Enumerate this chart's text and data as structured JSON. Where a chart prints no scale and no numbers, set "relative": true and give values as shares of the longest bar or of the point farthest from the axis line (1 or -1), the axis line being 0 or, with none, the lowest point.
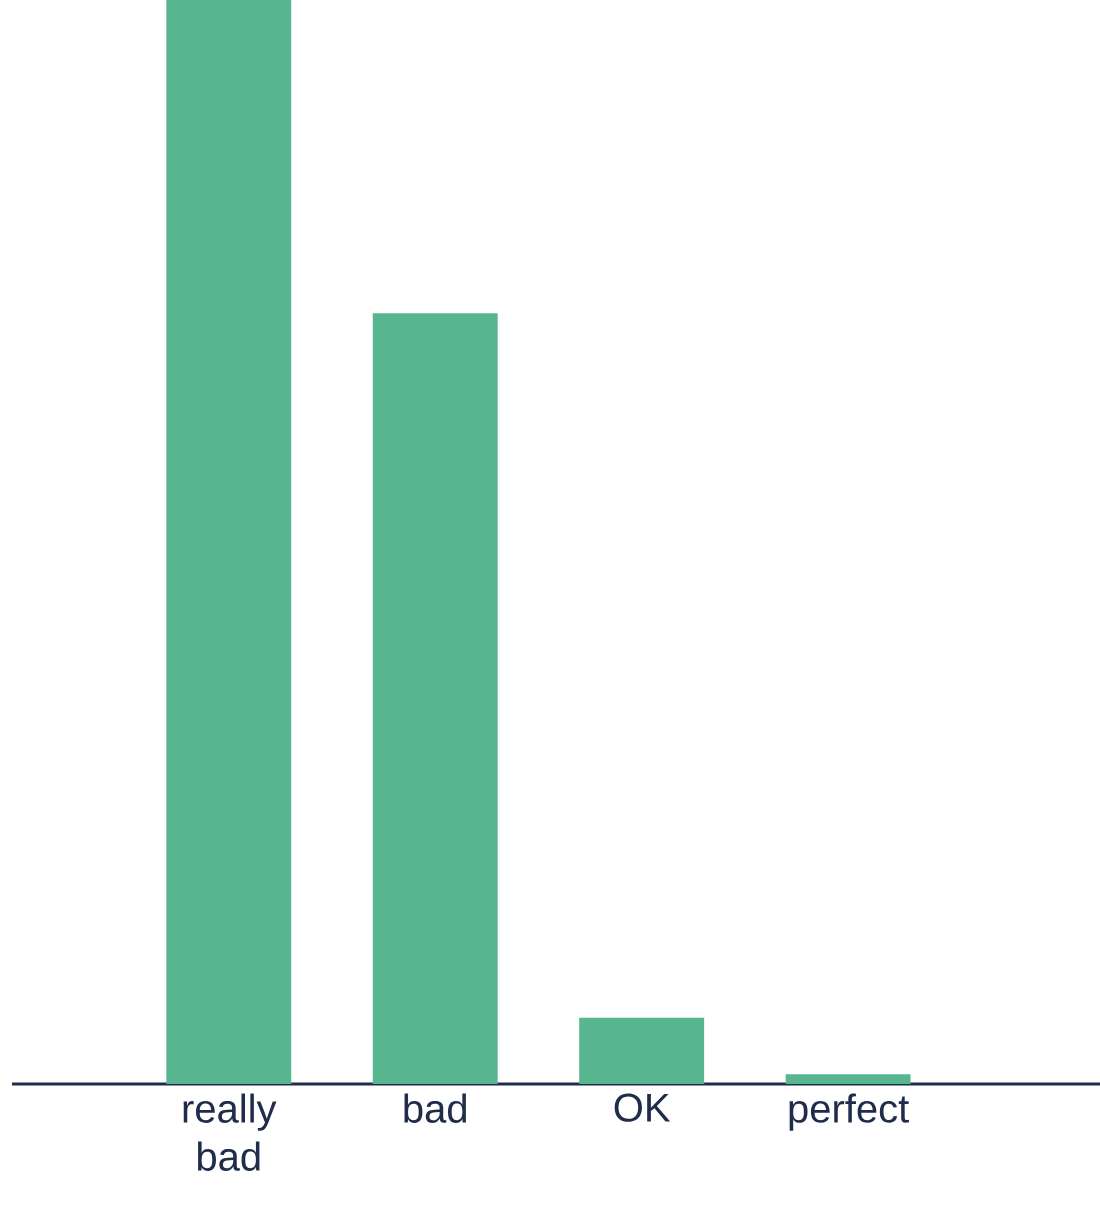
{
  "chart_data": {
    "type": "bar",
    "relative": true,
    "color": "#57b690",
    "categories": [
      "really bad",
      "bad",
      "OK",
      "perfect"
    ],
    "values": [
      1,
      0.711,
      0.061,
      0.009
    ]
  }
}
